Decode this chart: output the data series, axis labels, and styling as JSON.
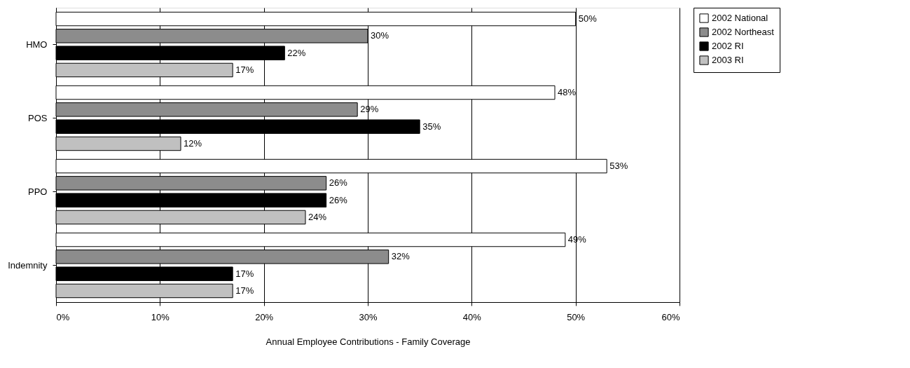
{
  "chart_data": {
    "type": "bar",
    "orientation": "horizontal",
    "xlabel": "Annual Employee Contributions - Family Coverage",
    "categories": [
      "HMO",
      "POS",
      "PPO",
      "Indemnity"
    ],
    "series": [
      {
        "name": "2002 National",
        "color": "#ffffff",
        "values": [
          50,
          48,
          53,
          49
        ],
        "value_labels": [
          "50%",
          "48%",
          "53%",
          "49%"
        ]
      },
      {
        "name": "2002 Northeast",
        "color": "#8c8c8c",
        "values": [
          30,
          29,
          26,
          32
        ],
        "value_labels": [
          "30%",
          "29%",
          "26%",
          "32%"
        ]
      },
      {
        "name": "2002 RI",
        "color": "#000000",
        "values": [
          22,
          35,
          26,
          17
        ],
        "value_labels": [
          "22%",
          "35%",
          "26%",
          "17%"
        ]
      },
      {
        "name": "2003 RI",
        "color": "#c0c0c0",
        "values": [
          17,
          12,
          24,
          17
        ],
        "value_labels": [
          "17%",
          "12%",
          "24%",
          "17%"
        ]
      }
    ],
    "xlim": [
      0,
      60
    ],
    "xticks": [
      {
        "value": 0,
        "label": "0%"
      },
      {
        "value": 10,
        "label": "10%"
      },
      {
        "value": 20,
        "label": "20%"
      },
      {
        "value": 30,
        "label": "30%"
      },
      {
        "value": 40,
        "label": "40%"
      },
      {
        "value": 50,
        "label": "50%"
      },
      {
        "value": 60,
        "label": "60%"
      }
    ],
    "grid": "x",
    "legend": "right"
  }
}
